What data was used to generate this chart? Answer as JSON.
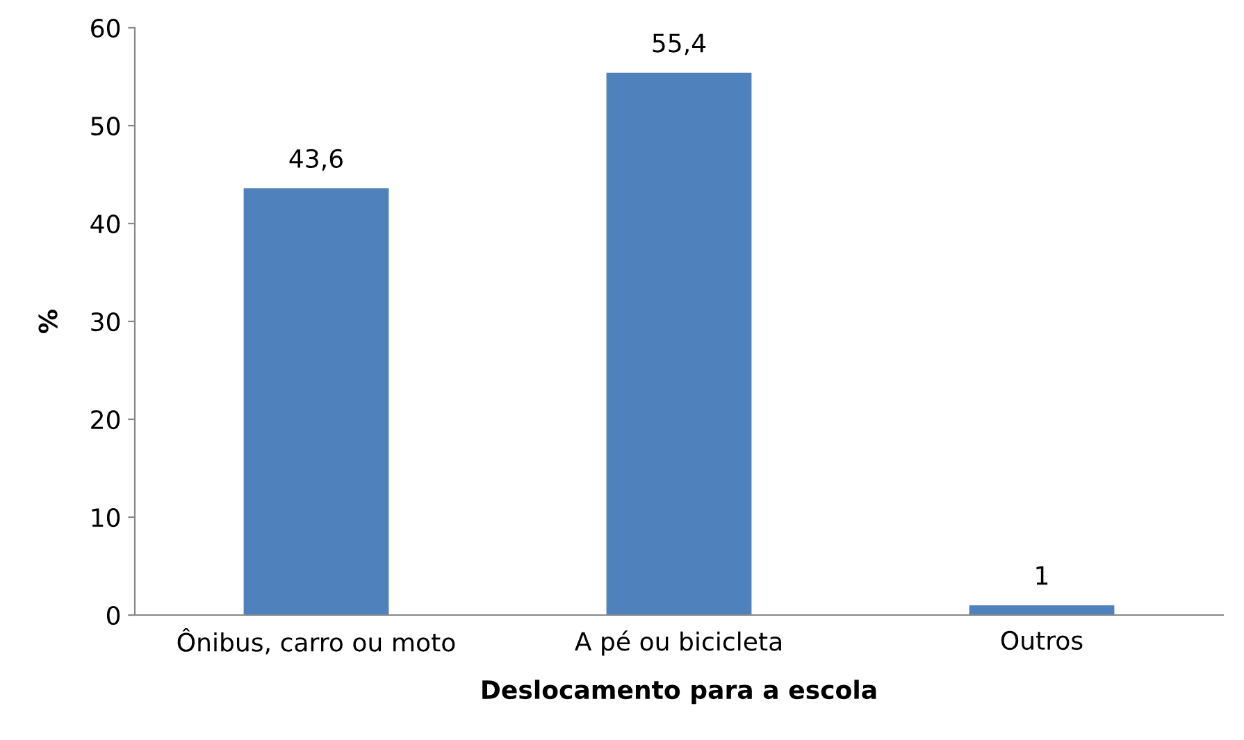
{
  "chart_data": {
    "type": "bar",
    "xlabel": "Deslocamento para a escola",
    "ylabel": "%",
    "categories": [
      "Ônibus, carro ou moto",
      "A pé ou bicicleta",
      "Outros"
    ],
    "values": [
      43.6,
      55.4,
      1
    ],
    "value_labels": [
      "43,6",
      "55,4",
      "1"
    ],
    "color": "#4f81bd",
    "ylim": [
      0,
      60
    ],
    "yticks": [
      0,
      10,
      20,
      30,
      40,
      50,
      60
    ],
    "grid": false,
    "legend": false
  }
}
